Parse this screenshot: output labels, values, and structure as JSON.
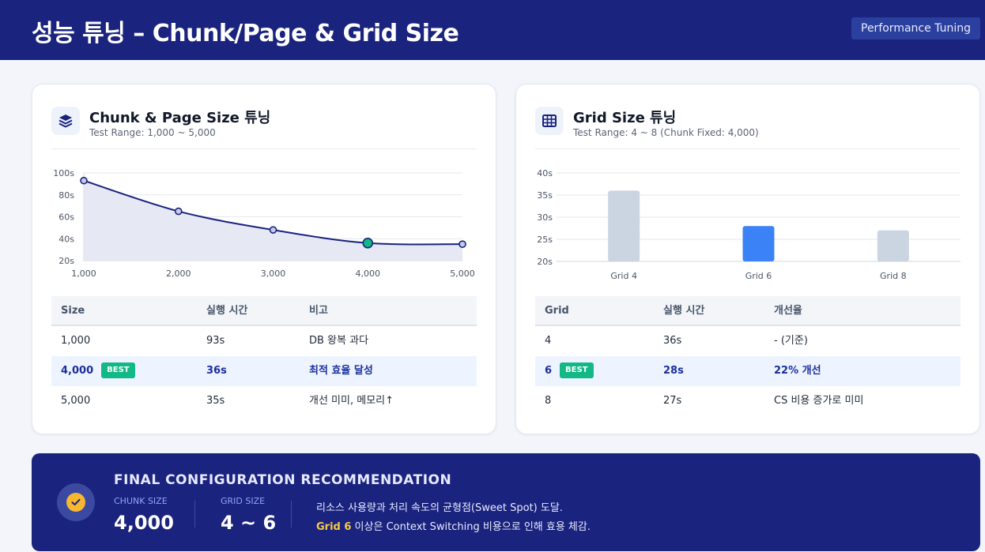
{
  "header": {
    "title": "성능 튜닝 – Chunk/Page & Grid Size",
    "tag": "Performance Tuning"
  },
  "chunk_card": {
    "icon": "layers-icon",
    "title": "Chunk & Page Size 튜닝",
    "subtitle": "Test Range: 1,000 ~ 5,000",
    "table": {
      "headers": [
        "Size",
        "실행 시간",
        "비고"
      ],
      "rows": [
        {
          "size": "1,000",
          "time": "93s",
          "note": "DB 왕복 과다",
          "best": false
        },
        {
          "size": "4,000",
          "time": "36s",
          "note": "최적 효율 달성",
          "best": true,
          "badge": "BEST"
        },
        {
          "size": "5,000",
          "time": "35s",
          "note": "개선 미미, 메모리↑",
          "best": false
        }
      ]
    }
  },
  "grid_card": {
    "icon": "grid-table-icon",
    "title": "Grid Size 튜닝",
    "subtitle": "Test Range: 4 ~ 8 (Chunk Fixed: 4,000)",
    "table": {
      "headers": [
        "Grid",
        "실행 시간",
        "개선율"
      ],
      "rows": [
        {
          "grid": "4",
          "time": "36s",
          "note": "- (기준)",
          "best": false
        },
        {
          "grid": "6",
          "time": "28s",
          "note": "22% 개선",
          "best": true,
          "badge": "BEST"
        },
        {
          "grid": "8",
          "time": "27s",
          "note": "CS 비용 증가로 미미",
          "best": false
        }
      ]
    }
  },
  "chart_data": [
    {
      "type": "area",
      "x": [
        1000,
        2000,
        3000,
        4000,
        5000
      ],
      "x_labels": [
        "1,000",
        "2,000",
        "3,000",
        "4,000",
        "5,000"
      ],
      "y": [
        93,
        65,
        48,
        36,
        35
      ],
      "y_ticks": [
        "20s",
        "40s",
        "60s",
        "80s",
        "100s"
      ],
      "ylim": [
        20,
        100
      ],
      "highlight_index": 3,
      "line_color": "#1a237e",
      "fill_color": "#e6e8f4",
      "highlight_color": "#12b886",
      "grid": true
    },
    {
      "type": "bar",
      "categories": [
        "Grid 4",
        "Grid 6",
        "Grid 8"
      ],
      "values": [
        36,
        28,
        27
      ],
      "y_ticks": [
        "20s",
        "25s",
        "30s",
        "35s",
        "40s"
      ],
      "ylim": [
        20,
        40
      ],
      "highlight_index": 1,
      "bar_color": "#cbd5e1",
      "highlight_color": "#3b82f6",
      "grid": true
    }
  ],
  "final": {
    "title": "FINAL CONFIGURATION RECOMMENDATION",
    "chunk_label": "CHUNK SIZE",
    "chunk_value": "4,000",
    "grid_label": "GRID SIZE",
    "grid_value": "4 ~ 6",
    "line1": "리소스 사용량과 처리 속도의 균형점(Sweet Spot) 도달.",
    "line2_highlight": "Grid 6",
    "line2_rest": " 이상은 Context Switching 비용으로 인해 효용 체감.",
    "icon": "check-circle-icon"
  }
}
